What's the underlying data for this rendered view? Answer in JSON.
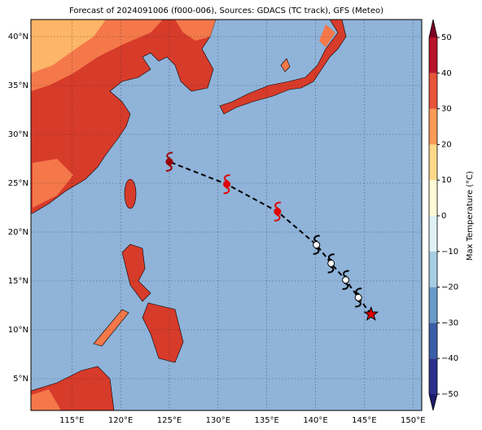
{
  "chart_data": {
    "type": "map",
    "title": "Forecast of 2024091006 (f000-006), Sources: GDACS (TC track), GFS (Meteo)",
    "xlim": [
      110.8,
      150.9
    ],
    "ylim": [
      1.75,
      41.75
    ],
    "xticks": [
      {
        "value": 115,
        "label": "115°E"
      },
      {
        "value": 120,
        "label": "120°E"
      },
      {
        "value": 125,
        "label": "125°E"
      },
      {
        "value": 130,
        "label": "130°E"
      },
      {
        "value": 135,
        "label": "135°E"
      },
      {
        "value": 140,
        "label": "140°E"
      },
      {
        "value": 145,
        "label": "145°E"
      },
      {
        "value": 150,
        "label": "150°E"
      }
    ],
    "yticks": [
      {
        "value": 5,
        "label": "5°N"
      },
      {
        "value": 10,
        "label": "10°N"
      },
      {
        "value": 15,
        "label": "15°N"
      },
      {
        "value": 20,
        "label": "20°N"
      },
      {
        "value": 25,
        "label": "25°N"
      },
      {
        "value": 30,
        "label": "30°N"
      },
      {
        "value": 35,
        "label": "35°N"
      },
      {
        "value": 40,
        "label": "40°N"
      }
    ],
    "grid": true,
    "colorbar": {
      "label": "Max Temperature (°C)",
      "lim": [
        -50,
        50
      ],
      "ticks": [
        {
          "value": -50,
          "label": "−50"
        },
        {
          "value": -40,
          "label": "−40"
        },
        {
          "value": -30,
          "label": "−30"
        },
        {
          "value": -20,
          "label": "−20"
        },
        {
          "value": -10,
          "label": "−10"
        },
        0,
        10,
        20,
        30,
        40,
        50
      ],
      "colors": [
        "#2b2f8c",
        "#3b5ea8",
        "#6a9bc9",
        "#a7cde3",
        "#e0f2f6",
        "#fffbd7",
        "#fed98c",
        "#fc9a58",
        "#e8553a",
        "#b8142b"
      ],
      "under": "#1c1a6b",
      "over": "#7d0025"
    },
    "track": {
      "lon": [
        145.7,
        144.4,
        143.1,
        141.6,
        140.1,
        136.1,
        130.9,
        125.0
      ],
      "lat": [
        11.6,
        13.3,
        15.1,
        16.8,
        18.7,
        22.1,
        24.9,
        27.2
      ],
      "colors": [
        "#e00000",
        "#ffffff",
        "#ffffff",
        "#ffffff",
        "#ffffff",
        "#e00000",
        "#e00000",
        "#9b0000"
      ]
    }
  }
}
